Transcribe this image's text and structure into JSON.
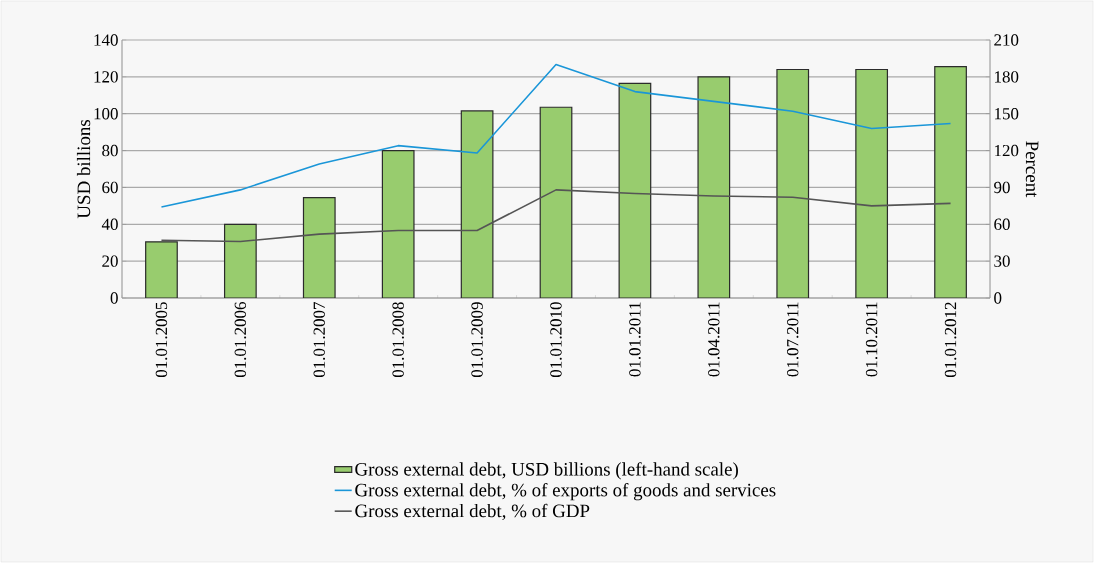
{
  "chart_data": {
    "type": "bar",
    "ylabel": "USD billions",
    "y2label": "Percent",
    "categories": [
      "01.01.2005",
      "01.01.2006",
      "01.01.2007",
      "01.01.2008",
      "01.01.2009",
      "01.01.2010",
      "01.01.2011",
      "01.04.2011",
      "01.07.2011",
      "01.10.2011",
      "01.01.2012"
    ],
    "series": [
      {
        "name": "Gross external debt, USD billions (left-hand scale)",
        "color": "#98cc6e",
        "values": [
          30.5,
          40,
          54.5,
          80,
          101.5,
          103.5,
          116.5,
          120,
          124,
          124,
          125.5
        ]
      },
      {
        "name": "Gross external debt, % of exports of goods and services",
        "type": "line",
        "axis": "y2",
        "color": "#1a96d8",
        "values": [
          74,
          88,
          109,
          124,
          118,
          190,
          168,
          160,
          152,
          138,
          142
        ]
      },
      {
        "name": "Gross external debt, % of GDP",
        "type": "line",
        "axis": "y2",
        "color": "#555555",
        "values": [
          47,
          46,
          52,
          55,
          55,
          88,
          85,
          83,
          82,
          75,
          77
        ]
      }
    ],
    "ylim": [
      0,
      140
    ],
    "yticks": [
      0,
      20,
      40,
      60,
      80,
      100,
      120,
      140
    ],
    "y2lim": [
      0,
      210
    ],
    "y2ticks": [
      0,
      30,
      60,
      90,
      120,
      150,
      180,
      210
    ],
    "grid": "y",
    "legend": "bottom"
  }
}
